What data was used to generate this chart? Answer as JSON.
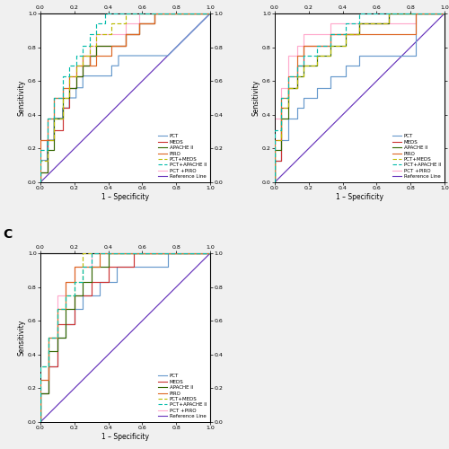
{
  "colors": {
    "PCT": "#6699CC",
    "MEDS": "#CC3333",
    "APACHE_II": "#336600",
    "PIRO": "#DD6622",
    "PCT_MEDS": "#BBBB00",
    "PCT_APACHE_II": "#00BBAA",
    "PCT_PIRO": "#FFAACC",
    "Reference": "#6633BB"
  },
  "xlabel": "1 – Specificity",
  "ylabel": "Sensitivity",
  "panel_A": {
    "PCT": [
      [
        0,
        0,
        0.04,
        0.04,
        0.08,
        0.08,
        0.13,
        0.13,
        0.17,
        0.17,
        0.21,
        0.21,
        0.25,
        0.25,
        0.42,
        0.42,
        0.46,
        0.46,
        0.5,
        0.5,
        0.58,
        0.67,
        0.75,
        1.0
      ],
      [
        0,
        0.13,
        0.13,
        0.25,
        0.25,
        0.38,
        0.38,
        0.44,
        0.44,
        0.5,
        0.5,
        0.56,
        0.56,
        0.63,
        0.63,
        0.69,
        0.69,
        0.75,
        0.75,
        0.75,
        0.75,
        0.75,
        0.75,
        1.0
      ]
    ],
    "MEDS": [
      [
        0,
        0,
        0.04,
        0.04,
        0.08,
        0.08,
        0.13,
        0.13,
        0.17,
        0.17,
        0.21,
        0.21,
        0.25,
        0.25,
        0.29,
        0.29,
        0.33,
        0.33,
        0.5,
        0.5,
        0.58,
        0.58,
        0.67,
        0.67,
        1.0
      ],
      [
        0,
        0.06,
        0.06,
        0.25,
        0.25,
        0.31,
        0.31,
        0.44,
        0.44,
        0.56,
        0.56,
        0.63,
        0.63,
        0.69,
        0.69,
        0.75,
        0.75,
        0.81,
        0.81,
        0.88,
        0.88,
        0.94,
        0.94,
        1.0,
        1.0
      ]
    ],
    "APACHE_II": [
      [
        0,
        0,
        0.04,
        0.04,
        0.08,
        0.08,
        0.13,
        0.13,
        0.17,
        0.17,
        0.21,
        0.21,
        0.25,
        0.25,
        0.29,
        0.29,
        0.33,
        0.33,
        0.5,
        0.5,
        0.58,
        0.58,
        0.67,
        0.67,
        0.79,
        0.79,
        1.0
      ],
      [
        0,
        0.06,
        0.06,
        0.19,
        0.19,
        0.38,
        0.38,
        0.5,
        0.5,
        0.56,
        0.56,
        0.63,
        0.63,
        0.69,
        0.69,
        0.75,
        0.75,
        0.81,
        0.81,
        0.88,
        0.88,
        0.94,
        0.94,
        1.0,
        1.0,
        1.0,
        1.0
      ]
    ],
    "PIRO": [
      [
        0,
        0,
        0.04,
        0.04,
        0.08,
        0.08,
        0.13,
        0.13,
        0.17,
        0.17,
        0.21,
        0.21,
        0.25,
        0.25,
        0.29,
        0.29,
        0.33,
        0.33,
        0.42,
        0.42,
        0.5,
        0.5,
        0.58,
        0.58,
        0.67,
        0.67,
        0.79,
        0.79,
        1.0
      ],
      [
        0,
        0.25,
        0.25,
        0.38,
        0.38,
        0.5,
        0.5,
        0.56,
        0.56,
        0.63,
        0.63,
        0.69,
        0.69,
        0.75,
        0.75,
        0.69,
        0.69,
        0.75,
        0.75,
        0.81,
        0.81,
        0.88,
        0.88,
        0.94,
        0.94,
        1.0,
        1.0,
        1.0,
        1.0
      ]
    ],
    "PCT_MEDS": [
      [
        0,
        0,
        0.04,
        0.04,
        0.08,
        0.08,
        0.13,
        0.13,
        0.17,
        0.17,
        0.21,
        0.21,
        0.25,
        0.25,
        0.29,
        0.29,
        0.33,
        0.33,
        0.42,
        0.42,
        0.5,
        0.5,
        0.67,
        0.67,
        1.0
      ],
      [
        0,
        0.13,
        0.13,
        0.25,
        0.25,
        0.38,
        0.38,
        0.5,
        0.5,
        0.63,
        0.63,
        0.69,
        0.69,
        0.75,
        0.75,
        0.81,
        0.81,
        0.88,
        0.88,
        0.94,
        0.94,
        1.0,
        1.0,
        1.0,
        1.0
      ]
    ],
    "PCT_APACHE_II": [
      [
        0,
        0,
        0.04,
        0.04,
        0.08,
        0.08,
        0.13,
        0.13,
        0.17,
        0.17,
        0.21,
        0.21,
        0.25,
        0.25,
        0.29,
        0.29,
        0.33,
        0.33,
        0.38,
        0.38,
        0.5,
        0.5,
        0.67,
        0.67,
        1.0
      ],
      [
        0,
        0.19,
        0.19,
        0.38,
        0.38,
        0.5,
        0.5,
        0.63,
        0.63,
        0.69,
        0.69,
        0.75,
        0.75,
        0.81,
        0.81,
        0.88,
        0.88,
        0.94,
        0.94,
        1.0,
        1.0,
        1.0,
        1.0,
        1.0,
        1.0
      ]
    ],
    "PCT_PIRO": [
      [
        0,
        0,
        0.04,
        0.04,
        0.08,
        0.08,
        0.13,
        0.13,
        0.17,
        0.17,
        0.21,
        0.21,
        0.25,
        0.25,
        0.29,
        0.29,
        0.33,
        0.33,
        0.5,
        0.5,
        0.58,
        0.58,
        0.67,
        0.67,
        1.0
      ],
      [
        0,
        0.25,
        0.25,
        0.38,
        0.38,
        0.5,
        0.5,
        0.56,
        0.56,
        0.63,
        0.63,
        0.69,
        0.69,
        0.75,
        0.75,
        0.81,
        0.81,
        0.88,
        0.88,
        0.94,
        0.94,
        1.0,
        1.0,
        1.0,
        1.0
      ]
    ]
  },
  "panel_B": {
    "PCT": [
      [
        0,
        0,
        0.04,
        0.04,
        0.08,
        0.08,
        0.13,
        0.13,
        0.17,
        0.17,
        0.25,
        0.25,
        0.33,
        0.33,
        0.42,
        0.42,
        0.5,
        0.5,
        0.58,
        0.58,
        0.67,
        0.75,
        0.83,
        0.83,
        1.0
      ],
      [
        0,
        0.13,
        0.13,
        0.25,
        0.25,
        0.38,
        0.38,
        0.44,
        0.44,
        0.5,
        0.5,
        0.56,
        0.56,
        0.63,
        0.63,
        0.69,
        0.69,
        0.75,
        0.75,
        0.75,
        0.75,
        0.75,
        0.75,
        1.0,
        1.0
      ]
    ],
    "MEDS": [
      [
        0,
        0,
        0.04,
        0.04,
        0.08,
        0.08,
        0.13,
        0.13,
        0.17,
        0.17,
        0.25,
        0.25,
        0.33,
        0.33,
        0.5,
        0.5,
        0.67,
        0.67,
        0.83,
        0.83,
        1.0
      ],
      [
        0,
        0.13,
        0.13,
        0.44,
        0.44,
        0.56,
        0.56,
        0.69,
        0.69,
        0.81,
        0.81,
        0.81,
        0.81,
        0.88,
        0.88,
        0.94,
        0.94,
        1.0,
        1.0,
        1.0,
        1.0
      ]
    ],
    "APACHE_II": [
      [
        0,
        0,
        0.04,
        0.04,
        0.08,
        0.08,
        0.13,
        0.13,
        0.17,
        0.17,
        0.25,
        0.25,
        0.33,
        0.33,
        0.42,
        0.42,
        0.5,
        0.5,
        0.67,
        0.67,
        0.83,
        0.83,
        1.0
      ],
      [
        0,
        0.19,
        0.19,
        0.38,
        0.38,
        0.56,
        0.56,
        0.63,
        0.63,
        0.69,
        0.69,
        0.75,
        0.75,
        0.81,
        0.81,
        0.88,
        0.88,
        0.94,
        0.94,
        1.0,
        1.0,
        1.0,
        1.0
      ]
    ],
    "PIRO": [
      [
        0,
        0,
        0.04,
        0.04,
        0.08,
        0.08,
        0.13,
        0.13,
        0.17,
        0.17,
        0.25,
        0.25,
        0.33,
        0.33,
        0.42,
        0.42,
        0.5,
        0.5,
        0.58,
        0.67,
        0.83,
        0.83,
        1.0
      ],
      [
        0,
        0.25,
        0.25,
        0.5,
        0.5,
        0.63,
        0.63,
        0.75,
        0.75,
        0.81,
        0.81,
        0.81,
        0.81,
        0.88,
        0.88,
        0.88,
        0.88,
        0.88,
        0.88,
        0.88,
        0.88,
        1.0,
        1.0
      ]
    ],
    "PCT_MEDS": [
      [
        0,
        0,
        0.04,
        0.04,
        0.08,
        0.08,
        0.13,
        0.13,
        0.17,
        0.17,
        0.25,
        0.25,
        0.33,
        0.33,
        0.42,
        0.42,
        0.5,
        0.5,
        0.67,
        0.67,
        0.83,
        0.83,
        1.0
      ],
      [
        0,
        0.25,
        0.25,
        0.44,
        0.44,
        0.56,
        0.56,
        0.63,
        0.63,
        0.69,
        0.69,
        0.75,
        0.75,
        0.81,
        0.81,
        0.88,
        0.88,
        0.94,
        0.94,
        1.0,
        1.0,
        1.0,
        1.0
      ]
    ],
    "PCT_APACHE_II": [
      [
        0,
        0,
        0.04,
        0.04,
        0.08,
        0.08,
        0.13,
        0.13,
        0.17,
        0.17,
        0.25,
        0.25,
        0.33,
        0.33,
        0.42,
        0.42,
        0.5,
        0.5,
        0.67,
        0.67,
        1.0
      ],
      [
        0,
        0.31,
        0.31,
        0.5,
        0.5,
        0.63,
        0.63,
        0.69,
        0.69,
        0.75,
        0.75,
        0.81,
        0.81,
        0.88,
        0.88,
        0.94,
        0.94,
        1.0,
        1.0,
        1.0,
        1.0
      ]
    ],
    "PCT_PIRO": [
      [
        0,
        0,
        0.04,
        0.04,
        0.08,
        0.08,
        0.13,
        0.13,
        0.17,
        0.17,
        0.25,
        0.25,
        0.33,
        0.33,
        0.5,
        0.5,
        0.67,
        0.67,
        0.83,
        0.83,
        1.0
      ],
      [
        0,
        0.38,
        0.38,
        0.56,
        0.56,
        0.75,
        0.75,
        0.81,
        0.81,
        0.88,
        0.88,
        0.88,
        0.88,
        0.94,
        0.94,
        0.94,
        0.94,
        0.94,
        0.94,
        1.0,
        1.0
      ]
    ]
  },
  "panel_C": {
    "PCT": [
      [
        0,
        0,
        0.05,
        0.05,
        0.1,
        0.1,
        0.15,
        0.15,
        0.2,
        0.2,
        0.25,
        0.25,
        0.35,
        0.35,
        0.45,
        0.45,
        0.55,
        0.55,
        0.65,
        0.65,
        0.75,
        0.75,
        1.0
      ],
      [
        0,
        0.17,
        0.17,
        0.33,
        0.33,
        0.5,
        0.5,
        0.58,
        0.58,
        0.67,
        0.67,
        0.75,
        0.75,
        0.83,
        0.83,
        0.92,
        0.92,
        0.92,
        0.92,
        0.92,
        0.92,
        1.0,
        1.0
      ]
    ],
    "MEDS": [
      [
        0,
        0,
        0.05,
        0.05,
        0.1,
        0.1,
        0.2,
        0.2,
        0.3,
        0.3,
        0.4,
        0.4,
        0.55,
        0.55,
        0.7,
        0.7,
        0.85,
        0.85,
        1.0
      ],
      [
        0,
        0.17,
        0.17,
        0.33,
        0.33,
        0.58,
        0.58,
        0.75,
        0.75,
        0.83,
        0.83,
        0.92,
        0.92,
        1.0,
        1.0,
        1.0,
        1.0,
        1.0,
        1.0
      ]
    ],
    "APACHE_II": [
      [
        0,
        0,
        0.05,
        0.05,
        0.1,
        0.1,
        0.15,
        0.15,
        0.2,
        0.2,
        0.25,
        0.25,
        0.3,
        0.3,
        0.4,
        0.4,
        0.5,
        0.5,
        0.65,
        0.65,
        0.8,
        0.8,
        1.0
      ],
      [
        0,
        0.17,
        0.17,
        0.42,
        0.42,
        0.5,
        0.5,
        0.67,
        0.67,
        0.75,
        0.75,
        0.83,
        0.83,
        0.92,
        0.92,
        1.0,
        1.0,
        1.0,
        1.0,
        1.0,
        1.0,
        1.0,
        1.0
      ]
    ],
    "PIRO": [
      [
        0,
        0,
        0.05,
        0.05,
        0.1,
        0.1,
        0.15,
        0.15,
        0.2,
        0.2,
        0.25,
        0.25,
        0.35,
        0.35,
        0.5,
        0.5,
        0.7,
        0.7,
        1.0
      ],
      [
        0,
        0.25,
        0.25,
        0.5,
        0.5,
        0.67,
        0.67,
        0.83,
        0.83,
        0.92,
        0.92,
        0.92,
        0.92,
        1.0,
        1.0,
        1.0,
        1.0,
        1.0,
        1.0
      ]
    ],
    "PCT_MEDS": [
      [
        0,
        0,
        0.05,
        0.05,
        0.1,
        0.1,
        0.15,
        0.15,
        0.2,
        0.2,
        0.25,
        0.25,
        0.35,
        0.35,
        0.45,
        0.45,
        0.6,
        0.6,
        0.8,
        0.8,
        1.0
      ],
      [
        0,
        0.33,
        0.33,
        0.5,
        0.5,
        0.67,
        0.67,
        0.75,
        0.75,
        0.83,
        0.83,
        1.0,
        1.0,
        1.0,
        1.0,
        1.0,
        1.0,
        1.0,
        1.0,
        1.0,
        1.0
      ]
    ],
    "PCT_APACHE_II": [
      [
        0,
        0,
        0.05,
        0.05,
        0.1,
        0.1,
        0.15,
        0.15,
        0.2,
        0.2,
        0.25,
        0.25,
        0.3,
        0.3,
        0.4,
        0.4,
        0.55,
        0.55,
        0.75,
        0.75,
        1.0
      ],
      [
        0,
        0.33,
        0.33,
        0.5,
        0.5,
        0.67,
        0.67,
        0.75,
        0.75,
        0.83,
        0.83,
        0.92,
        0.92,
        1.0,
        1.0,
        1.0,
        1.0,
        1.0,
        1.0,
        1.0,
        1.0
      ]
    ],
    "PCT_PIRO": [
      [
        0,
        0,
        0.05,
        0.05,
        0.1,
        0.1,
        0.15,
        0.15,
        0.2,
        0.2,
        0.25,
        0.25,
        0.3,
        0.3,
        0.45,
        0.45,
        0.6,
        0.6,
        1.0
      ],
      [
        0,
        0.25,
        0.25,
        0.5,
        0.5,
        0.75,
        0.75,
        0.83,
        0.83,
        0.92,
        0.92,
        0.92,
        0.92,
        1.0,
        1.0,
        1.0,
        1.0,
        1.0,
        1.0
      ]
    ]
  },
  "bg_color": "#F0F0F0"
}
